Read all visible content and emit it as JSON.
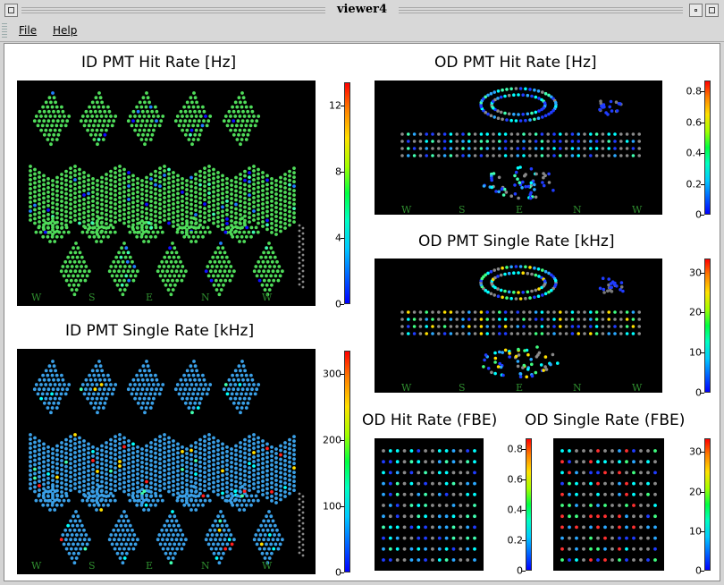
{
  "window": {
    "title": "viewer4"
  },
  "menu": {
    "file": "File",
    "help": "Help"
  },
  "panels": {
    "id_hit": {
      "title": "ID PMT Hit Rate [Hz]",
      "ticks": [
        "0",
        "4",
        "8",
        "12"
      ],
      "directions": [
        "W",
        "S",
        "E",
        "N",
        "W"
      ]
    },
    "id_single": {
      "title": "ID PMT Single Rate [kHz]",
      "ticks": [
        "0",
        "100",
        "200",
        "300"
      ],
      "directions": [
        "W",
        "S",
        "E",
        "N",
        "W"
      ]
    },
    "od_hit": {
      "title": "OD PMT Hit Rate [Hz]",
      "ticks": [
        "0",
        "0.2",
        "0.4",
        "0.6",
        "0.8"
      ],
      "directions": [
        "W",
        "S",
        "E",
        "N",
        "W"
      ]
    },
    "od_single": {
      "title": "OD PMT Single Rate [kHz]",
      "ticks": [
        "0",
        "10",
        "20",
        "30"
      ],
      "directions": [
        "W",
        "S",
        "E",
        "N",
        "W"
      ]
    },
    "od_hit_fbe": {
      "title": "OD Hit Rate (FBE)",
      "ticks": [
        "0",
        "0.2",
        "0.4",
        "0.6",
        "0.8"
      ]
    },
    "od_single_fbe": {
      "title": "OD Single Rate (FBE)",
      "ticks": [
        "0",
        "10",
        "20",
        "30"
      ]
    }
  },
  "colors": {
    "plot_bg": "#000000",
    "direction_label": "#2e8b2e",
    "id_hit_pmt": "#4fdc5a",
    "id_single_pmt": "#3aa0e8"
  }
}
